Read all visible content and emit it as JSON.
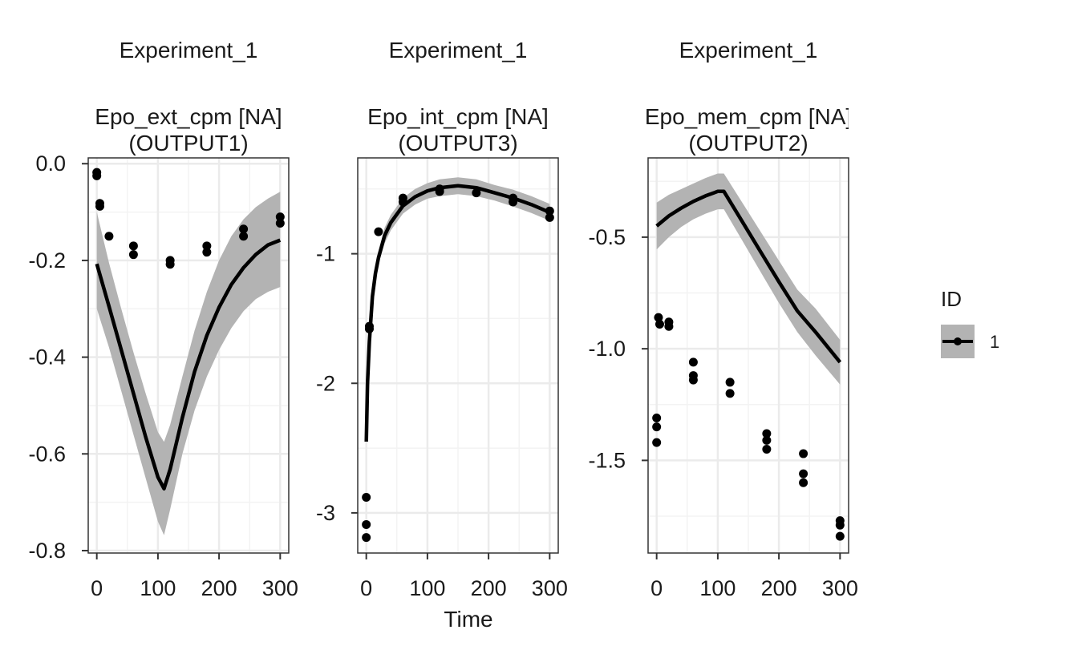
{
  "chart_data": {
    "type": "line",
    "xlabel": "Time",
    "legend": {
      "title": "ID",
      "entries": [
        "1"
      ],
      "position": "right"
    },
    "grid": true,
    "colors": {
      "line": "#000000",
      "ribbon": "#b3b3b3",
      "points": "#000000",
      "grid": "#ebebeb"
    },
    "panels": [
      {
        "strip": [
          "Experiment_1",
          "Epo_ext_cpm [NA]",
          "(OUTPUT1)"
        ],
        "xlim": [
          -14,
          314
        ],
        "ylim": [
          -0.805,
          0.012
        ],
        "xticks": [
          0,
          100,
          200,
          300
        ],
        "xtick_labels": [
          "0",
          "100",
          "200",
          "300"
        ],
        "yticks": [
          0,
          -0.2,
          -0.4,
          -0.6,
          -0.8
        ],
        "ytick_labels": [
          "0.0",
          "-0.2",
          "-0.4",
          "-0.6",
          "-0.8"
        ],
        "fit": {
          "x": [
            0,
            20,
            40,
            60,
            80,
            100,
            110,
            120,
            140,
            160,
            180,
            200,
            220,
            240,
            260,
            280,
            300
          ],
          "y": [
            -0.207,
            -0.295,
            -0.385,
            -0.475,
            -0.565,
            -0.648,
            -0.672,
            -0.632,
            -0.525,
            -0.43,
            -0.355,
            -0.297,
            -0.25,
            -0.215,
            -0.188,
            -0.168,
            -0.158
          ],
          "lower": [
            -0.3,
            -0.38,
            -0.47,
            -0.56,
            -0.65,
            -0.74,
            -0.768,
            -0.715,
            -0.6,
            -0.51,
            -0.44,
            -0.385,
            -0.34,
            -0.305,
            -0.28,
            -0.265,
            -0.255
          ],
          "upper": [
            -0.1,
            -0.205,
            -0.3,
            -0.39,
            -0.475,
            -0.555,
            -0.575,
            -0.54,
            -0.44,
            -0.345,
            -0.265,
            -0.2,
            -0.15,
            -0.115,
            -0.09,
            -0.072,
            -0.058
          ]
        },
        "points": {
          "x": [
            0,
            0,
            5,
            5,
            20,
            60,
            60,
            120,
            120,
            180,
            180,
            240,
            240,
            300,
            300
          ],
          "y": [
            -0.018,
            -0.025,
            -0.082,
            -0.088,
            -0.15,
            -0.17,
            -0.188,
            -0.2,
            -0.208,
            -0.17,
            -0.183,
            -0.135,
            -0.15,
            -0.11,
            -0.123
          ]
        }
      },
      {
        "strip": [
          "Experiment_1",
          "Epo_int_cpm [NA]",
          "(OUTPUT3)"
        ],
        "xlim": [
          -14,
          314
        ],
        "ylim": [
          -3.31,
          -0.26
        ],
        "xticks": [
          0,
          100,
          200,
          300
        ],
        "xtick_labels": [
          "0",
          "100",
          "200",
          "300"
        ],
        "yticks": [
          -1,
          -2,
          -3
        ],
        "ytick_labels": [
          "-1",
          "-2",
          "-3"
        ],
        "fit": {
          "x": [
            0,
            2,
            5,
            10,
            15,
            20,
            30,
            40,
            60,
            80,
            100,
            120,
            150,
            180,
            210,
            240,
            270,
            300
          ],
          "y": [
            -2.45,
            -2.0,
            -1.68,
            -1.33,
            -1.15,
            -1.03,
            -0.86,
            -0.76,
            -0.63,
            -0.56,
            -0.515,
            -0.49,
            -0.475,
            -0.49,
            -0.53,
            -0.57,
            -0.62,
            -0.68
          ],
          "lower": [
            -2.45,
            -2.02,
            -1.71,
            -1.37,
            -1.2,
            -1.08,
            -0.92,
            -0.82,
            -0.69,
            -0.62,
            -0.575,
            -0.555,
            -0.54,
            -0.555,
            -0.59,
            -0.635,
            -0.685,
            -0.745
          ],
          "upper": [
            -2.45,
            -1.98,
            -1.65,
            -1.29,
            -1.1,
            -0.98,
            -0.8,
            -0.7,
            -0.57,
            -0.5,
            -0.455,
            -0.425,
            -0.41,
            -0.425,
            -0.47,
            -0.505,
            -0.555,
            -0.615
          ]
        },
        "points": {
          "x": [
            0,
            0,
            0,
            5,
            5,
            20,
            60,
            60,
            120,
            120,
            180,
            240,
            240,
            300,
            300
          ],
          "y": [
            -2.88,
            -3.09,
            -3.19,
            -1.56,
            -1.58,
            -0.83,
            -0.57,
            -0.6,
            -0.5,
            -0.52,
            -0.53,
            -0.57,
            -0.6,
            -0.67,
            -0.72
          ]
        }
      },
      {
        "strip": [
          "Experiment_1",
          "Epo_mem_cpm [NA]",
          "(OUTPUT2)"
        ],
        "xlim": [
          -14,
          314
        ],
        "ylim": [
          -1.915,
          -0.145
        ],
        "xticks": [
          0,
          100,
          200,
          300
        ],
        "xtick_labels": [
          "0",
          "100",
          "200",
          "300"
        ],
        "yticks": [
          -0.5,
          -1.0,
          -1.5
        ],
        "ytick_labels": [
          "-0.5",
          "-1.0",
          "-1.5"
        ],
        "fit": {
          "x": [
            0,
            20,
            40,
            60,
            80,
            100,
            110,
            140,
            170,
            200,
            230,
            260,
            300
          ],
          "y": [
            -0.45,
            -0.405,
            -0.37,
            -0.34,
            -0.315,
            -0.295,
            -0.295,
            -0.43,
            -0.565,
            -0.7,
            -0.83,
            -0.925,
            -1.06
          ],
          "lower": [
            -0.555,
            -0.5,
            -0.455,
            -0.42,
            -0.395,
            -0.375,
            -0.375,
            -0.515,
            -0.655,
            -0.795,
            -0.925,
            -1.03,
            -1.16
          ],
          "upper": [
            -0.345,
            -0.31,
            -0.285,
            -0.26,
            -0.235,
            -0.215,
            -0.215,
            -0.345,
            -0.475,
            -0.605,
            -0.735,
            -0.82,
            -0.96
          ]
        },
        "points": {
          "x": [
            0,
            0,
            0,
            3,
            5,
            20,
            20,
            60,
            60,
            60,
            120,
            120,
            180,
            180,
            180,
            240,
            240,
            240,
            300,
            300,
            300
          ],
          "y": [
            -1.31,
            -1.35,
            -1.42,
            -0.86,
            -0.89,
            -0.88,
            -0.9,
            -1.06,
            -1.12,
            -1.14,
            -1.15,
            -1.2,
            -1.38,
            -1.41,
            -1.45,
            -1.47,
            -1.56,
            -1.6,
            -1.77,
            -1.79,
            -1.84
          ]
        }
      }
    ]
  }
}
